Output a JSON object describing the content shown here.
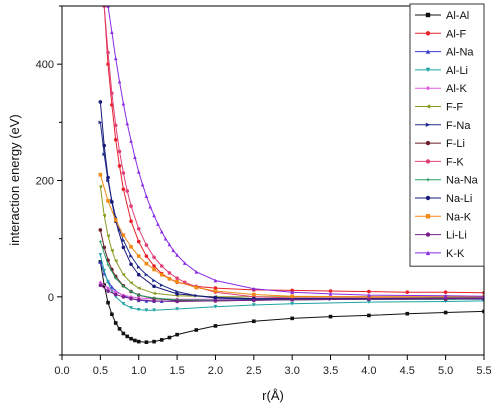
{
  "chart_data": {
    "type": "line",
    "xlabel": "r(Å)",
    "ylabel": "interaction energy (eV)",
    "xlim": [
      0.0,
      5.5
    ],
    "ylim": [
      -100,
      500
    ],
    "xticks": [
      "0.0",
      "0.5",
      "1.0",
      "1.5",
      "2.0",
      "2.5",
      "3.0",
      "3.5",
      "4.0",
      "4.5",
      "5.0",
      "5.5"
    ],
    "yticks": [
      "0",
      "200",
      "400"
    ],
    "xtick_values": [
      0.0,
      0.5,
      1.0,
      1.5,
      2.0,
      2.5,
      3.0,
      3.5,
      4.0,
      4.5,
      5.0,
      5.5
    ],
    "ytick_values": [
      0,
      200,
      400
    ],
    "grid": false,
    "legend_position": "top-right",
    "series": [
      {
        "name": "Al-Al",
        "color": "#111111",
        "marker": "square",
        "x": [
          0.5,
          0.55,
          0.6,
          0.65,
          0.7,
          0.75,
          0.8,
          0.85,
          0.9,
          0.95,
          1.0,
          1.1,
          1.2,
          1.3,
          1.4,
          1.5,
          1.75,
          2.0,
          2.5,
          3.0,
          3.5,
          4.0,
          4.5,
          5.0,
          5.5
        ],
        "y": [
          60,
          20,
          -10,
          -30,
          -45,
          -55,
          -63,
          -68,
          -72,
          -75,
          -77,
          -78,
          -77,
          -74,
          -70,
          -65,
          -57,
          -50,
          -42,
          -37,
          -34,
          -32,
          -29,
          -27,
          -25
        ]
      },
      {
        "name": "Al-F",
        "color": "#e8202a",
        "marker": "circle",
        "x": [
          0.55,
          0.6,
          0.65,
          0.7,
          0.75,
          0.8,
          0.9,
          1.0,
          1.1,
          1.2,
          1.3,
          1.4,
          1.5,
          1.75,
          2.0,
          2.5,
          3.0,
          3.5,
          4.0,
          4.5,
          5.0,
          5.5
        ],
        "y": [
          500,
          400,
          330,
          270,
          225,
          185,
          130,
          95,
          70,
          53,
          40,
          31,
          25,
          18,
          15,
          12,
          11,
          10,
          9,
          8,
          8,
          7
        ]
      },
      {
        "name": "Al-Na",
        "color": "#3b3bd0",
        "marker": "triangle-up",
        "x": [
          0.5,
          0.55,
          0.6,
          0.65,
          0.7,
          0.8,
          0.9,
          1.0,
          1.1,
          1.2,
          1.3,
          1.5,
          2.0,
          2.5,
          3.0,
          4.0,
          5.0,
          5.5
        ],
        "y": [
          60,
          40,
          27,
          17,
          10,
          2,
          -3,
          -6,
          -7,
          -7.5,
          -7.5,
          -7,
          -6,
          -5,
          -5,
          -4,
          -4,
          -4
        ]
      },
      {
        "name": "Al-Li",
        "color": "#1fa3a3",
        "marker": "triangle-down",
        "x": [
          0.5,
          0.55,
          0.6,
          0.65,
          0.7,
          0.8,
          0.9,
          1.0,
          1.1,
          1.2,
          1.5,
          2.0,
          2.5,
          3.0,
          4.0,
          5.0,
          5.5
        ],
        "y": [
          72,
          45,
          25,
          10,
          0,
          -12,
          -19,
          -22,
          -23,
          -23,
          -21,
          -17,
          -14,
          -12,
          -9,
          -8,
          -7
        ]
      },
      {
        "name": "Al-K",
        "color": "#e25be0",
        "marker": "diamond",
        "x": [
          0.5,
          0.6,
          0.7,
          0.8,
          0.9,
          1.0,
          1.2,
          1.5,
          2.0,
          2.5,
          3.0,
          4.0,
          5.0,
          5.5
        ],
        "y": [
          25,
          15,
          8,
          3,
          0,
          -2,
          -3.5,
          -4,
          -4,
          -3.5,
          -3,
          -3,
          -2.5,
          -2.5
        ]
      },
      {
        "name": "F-F",
        "color": "#8c9a20",
        "marker": "triangle-left",
        "x": [
          0.5,
          0.55,
          0.6,
          0.65,
          0.7,
          0.8,
          0.9,
          1.0,
          1.2,
          1.5,
          2.0,
          2.5,
          3.0,
          4.0,
          5.0,
          5.5
        ],
        "y": [
          190,
          140,
          105,
          80,
          62,
          38,
          24,
          15,
          6,
          2,
          0,
          0,
          0,
          0,
          0,
          0
        ]
      },
      {
        "name": "F-Na",
        "color": "#1e2b8a",
        "marker": "triangle-right",
        "x": [
          0.5,
          0.55,
          0.6,
          0.65,
          0.7,
          0.75,
          0.8,
          0.9,
          1.0,
          1.1,
          1.2,
          1.3,
          1.5,
          1.75,
          2.0,
          2.5,
          3.0,
          3.5,
          4.0,
          5.0,
          5.5
        ],
        "y": [
          300,
          245,
          200,
          165,
          137,
          115,
          97,
          70,
          51,
          38,
          28,
          20,
          9,
          2,
          -2,
          -4,
          -4,
          -4,
          -4,
          -3,
          -3
        ]
      },
      {
        "name": "F-Li",
        "color": "#6b1f2a",
        "marker": "hexagon",
        "x": [
          0.5,
          0.55,
          0.6,
          0.65,
          0.7,
          0.8,
          0.9,
          1.0,
          1.2,
          1.5,
          2.0,
          2.5,
          3.0,
          4.0,
          5.0,
          5.5
        ],
        "y": [
          115,
          85,
          63,
          47,
          35,
          19,
          9,
          3,
          -3,
          -6,
          -7,
          -6,
          -5,
          -4,
          -4,
          -3
        ]
      },
      {
        "name": "F-K",
        "color": "#e0407a",
        "marker": "circle",
        "x": [
          0.55,
          0.6,
          0.65,
          0.7,
          0.75,
          0.8,
          0.85,
          0.9,
          1.0,
          1.1,
          1.2,
          1.3,
          1.4,
          1.5,
          1.6,
          1.75,
          2.0,
          2.5,
          3.0,
          4.0,
          5.0,
          5.5
        ],
        "y": [
          500,
          420,
          350,
          295,
          250,
          213,
          182,
          156,
          117,
          89,
          68,
          53,
          41,
          32,
          25,
          17,
          8,
          0,
          -2,
          -2,
          -2,
          -2
        ]
      },
      {
        "name": "Na-Na",
        "color": "#2aa066",
        "marker": "star",
        "x": [
          0.5,
          0.6,
          0.7,
          0.8,
          0.9,
          1.0,
          1.2,
          1.5,
          2.0,
          2.5,
          3.0,
          4.0,
          5.0,
          5.5
        ],
        "y": [
          95,
          55,
          32,
          18,
          9,
          3,
          -2,
          -5,
          -6,
          -6,
          -5,
          -4,
          -4,
          -3
        ]
      },
      {
        "name": "Na-Li",
        "color": "#1a1a7a",
        "marker": "pentagon",
        "x": [
          0.5,
          0.55,
          0.6,
          0.65,
          0.7,
          0.8,
          0.9,
          1.0,
          1.2,
          1.5,
          2.0,
          2.5,
          3.0,
          4.0,
          5.0,
          5.5
        ],
        "y": [
          335,
          260,
          205,
          163,
          130,
          85,
          56,
          38,
          18,
          5,
          -1,
          -3,
          -3,
          -3,
          -2,
          -2
        ]
      },
      {
        "name": "Na-K",
        "color": "#f08a12",
        "marker": "square",
        "x": [
          0.5,
          0.6,
          0.7,
          0.8,
          0.9,
          1.0,
          1.1,
          1.2,
          1.3,
          1.4,
          1.5,
          1.75,
          2.0,
          2.5,
          3.0,
          4.0,
          5.0,
          5.5
        ],
        "y": [
          210,
          165,
          132,
          106,
          86,
          70,
          57,
          47,
          38,
          31,
          26,
          16,
          10,
          4,
          1,
          0,
          0,
          0
        ]
      },
      {
        "name": "Li-Li",
        "color": "#7a1f8c",
        "marker": "circle",
        "x": [
          0.5,
          0.6,
          0.7,
          0.8,
          0.9,
          1.0,
          1.2,
          1.5,
          2.0,
          2.5,
          3.0,
          4.0,
          5.0,
          5.5
        ],
        "y": [
          20,
          10,
          4,
          0,
          -3,
          -5,
          -7,
          -8,
          -7,
          -6,
          -5,
          -4,
          -3,
          -3
        ]
      },
      {
        "name": "K-K",
        "color": "#8a2be2",
        "marker": "triangle-up",
        "x": [
          0.6,
          0.65,
          0.7,
          0.75,
          0.8,
          0.85,
          0.9,
          0.95,
          1.0,
          1.05,
          1.1,
          1.15,
          1.2,
          1.25,
          1.3,
          1.35,
          1.4,
          1.45,
          1.5,
          1.6,
          1.75,
          2.0,
          2.5,
          3.0,
          3.5,
          4.0,
          5.0,
          5.5
        ],
        "y": [
          500,
          455,
          410,
          370,
          332,
          298,
          268,
          240,
          215,
          193,
          173,
          155,
          140,
          125,
          112,
          100,
          90,
          80,
          72,
          58,
          43,
          28,
          14,
          8,
          5,
          3,
          2,
          1
        ]
      }
    ]
  }
}
